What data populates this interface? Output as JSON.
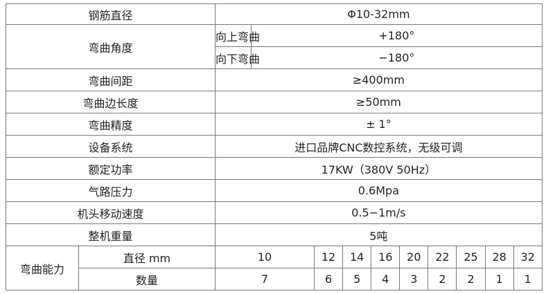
{
  "specs": {
    "rebar_diameter": {
      "label": "钢筋直径",
      "value": "Φ10-32mm"
    },
    "bend_angle": {
      "label": "弯曲角度",
      "up_label": "向上弯曲",
      "up_value": "+180°",
      "down_label": "向下弯曲",
      "down_value": "−180°"
    },
    "rows": [
      {
        "label": "弯曲间距",
        "value": "≥400mm"
      },
      {
        "label": "弯曲边长度",
        "value": "≥50mm"
      },
      {
        "label": "弯曲精度",
        "value": "± 1°"
      },
      {
        "label": "设备系统",
        "value": "进口品牌CNC数控系统，无级可调"
      },
      {
        "label": "额定功率",
        "value": "17KW（380V 50Hz）"
      },
      {
        "label": "气路压力",
        "value": "0.6Mpa"
      },
      {
        "label": "机头移动速度",
        "value": "0.5−1m/s"
      },
      {
        "label": "整机重量",
        "value": "5吨"
      }
    ],
    "capacity": {
      "label": "弯曲能力",
      "diameter_label": "直径 mm",
      "quantity_label": "数量",
      "diameters": [
        "10",
        "12",
        "14",
        "16",
        "20",
        "22",
        "25",
        "28",
        "32"
      ],
      "quantities": [
        "7",
        "6",
        "5",
        "4",
        "3",
        "2",
        "2",
        "1",
        "1"
      ]
    }
  }
}
